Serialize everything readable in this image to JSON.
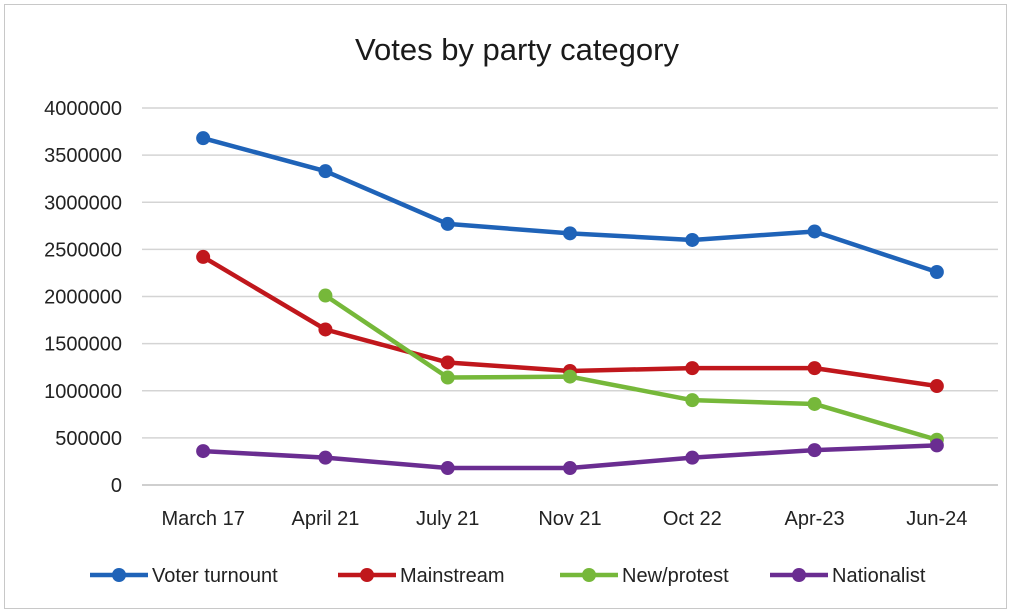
{
  "chart_data": {
    "type": "line",
    "title": "Votes by party category",
    "categories": [
      "March 17",
      "April 21",
      "July 21",
      "Nov 21",
      "Oct 22",
      "Apr-23",
      "Jun-24"
    ],
    "ylim": [
      0,
      4000000
    ],
    "yticks": [
      0,
      500000,
      1000000,
      1500000,
      2000000,
      2500000,
      3000000,
      3500000,
      4000000
    ],
    "ytick_labels": [
      "0",
      "500000",
      "1000000",
      "1500000",
      "2000000",
      "2500000",
      "3000000",
      "3500000",
      "4000000"
    ],
    "grid": true,
    "legend_position": "bottom",
    "series": [
      {
        "name": "Voter turnount",
        "color": "#1f63b8",
        "values": [
          3680000,
          3330000,
          2770000,
          2670000,
          2600000,
          2690000,
          2260000
        ]
      },
      {
        "name": "Mainstream",
        "color": "#c0171c",
        "values": [
          2420000,
          1650000,
          1300000,
          1210000,
          1240000,
          1240000,
          1050000
        ]
      },
      {
        "name": "New/protest",
        "color": "#76b83a",
        "values": [
          null,
          2010000,
          1140000,
          1150000,
          900000,
          860000,
          480000
        ]
      },
      {
        "name": "Nationalist",
        "color": "#6a2d91",
        "values": [
          360000,
          290000,
          180000,
          180000,
          290000,
          370000,
          420000
        ]
      }
    ]
  }
}
